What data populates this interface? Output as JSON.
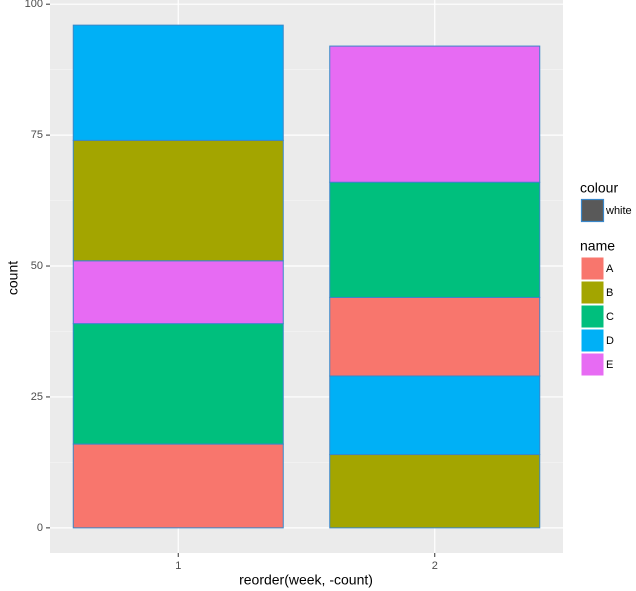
{
  "chart_data": {
    "type": "stacked_bar",
    "x_label": "reorder(week, -count)",
    "y_label": "count",
    "categories": [
      "1",
      "2"
    ],
    "series": [
      {
        "name": "A",
        "color": "#F8766D",
        "values": [
          16,
          15
        ]
      },
      {
        "name": "B",
        "color": "#A3A500",
        "values": [
          23,
          14
        ]
      },
      {
        "name": "C",
        "color": "#00BF7D",
        "values": [
          23,
          22
        ]
      },
      {
        "name": "D",
        "color": "#00B0F6",
        "values": [
          22,
          15
        ]
      },
      {
        "name": "E",
        "color": "#E76BF3",
        "values": [
          12,
          26
        ]
      }
    ],
    "stack_order": [
      [
        "A",
        "C",
        "E",
        "B",
        "D"
      ],
      [
        "B",
        "D",
        "A",
        "C",
        "E"
      ]
    ],
    "outline_color": "#3a87c9",
    "colour_legend": {
      "title": "colour",
      "entries": [
        "white"
      ],
      "fill": "#595959"
    },
    "fill_legend_title": "name",
    "ylim": [
      -4.8,
      100.8
    ],
    "yticks": [
      0,
      25,
      50,
      75,
      100
    ],
    "grid": true
  }
}
